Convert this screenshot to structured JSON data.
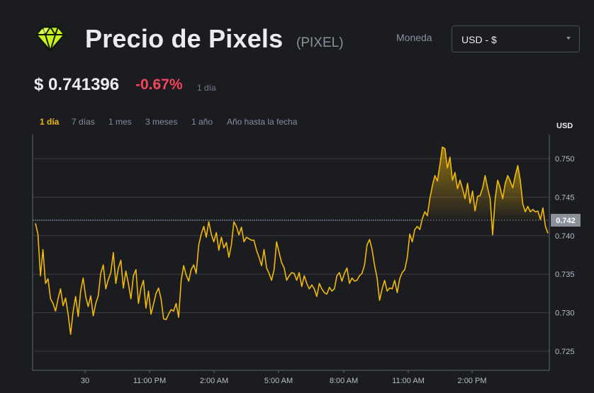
{
  "header": {
    "title": "Precio de Pixels",
    "ticker": "(PIXEL)",
    "currency_label": "Moneda",
    "currency_value": "USD - $",
    "logo_icon": "green-gem-icon"
  },
  "price": {
    "value": "$ 0.741396",
    "change": "-0.67%",
    "period": "1 día",
    "change_color": "#f6465d"
  },
  "tabs": [
    "1 día",
    "7 días",
    "1 mes",
    "3 meses",
    "1 año",
    "Año hasta la fecha"
  ],
  "active_tab": "1 día",
  "chart_data": {
    "type": "line",
    "unit_label": "USD",
    "x_tick_labels": [
      "30",
      "11:00 PM",
      "2:00 AM",
      "5:00 AM",
      "8:00 AM",
      "11:00 AM",
      "2:00 PM"
    ],
    "y_ticks": [
      0.725,
      0.73,
      0.735,
      0.74,
      0.745,
      0.75
    ],
    "y_tick_labels": [
      "0.725",
      "0.730",
      "0.735",
      "0.740",
      "0.745",
      "0.750"
    ],
    "ylim": [
      0.7226,
      0.7529
    ],
    "reference_value": 0.742,
    "reference_label": "0.742",
    "grid": true,
    "line_color": "#f0b90b",
    "values": [
      0.7416,
      0.7402,
      0.7348,
      0.7382,
      0.7338,
      0.7344,
      0.7318,
      0.7312,
      0.7302,
      0.7318,
      0.7331,
      0.7309,
      0.7319,
      0.7298,
      0.7272,
      0.7302,
      0.7321,
      0.7295,
      0.7328,
      0.7345,
      0.7321,
      0.7308,
      0.7322,
      0.7296,
      0.7312,
      0.7322,
      0.7351,
      0.7362,
      0.7331,
      0.7343,
      0.7352,
      0.7378,
      0.7338,
      0.7358,
      0.7368,
      0.7332,
      0.7354,
      0.7338,
      0.7318,
      0.7348,
      0.7356,
      0.7312,
      0.7332,
      0.7342,
      0.7306,
      0.7328,
      0.7298,
      0.7311,
      0.7325,
      0.7332,
      0.7318,
      0.7292,
      0.7291,
      0.7298,
      0.7304,
      0.7302,
      0.7312,
      0.7294,
      0.7342,
      0.7361,
      0.7349,
      0.7341,
      0.7356,
      0.7362,
      0.7351,
      0.7388,
      0.7402,
      0.7412,
      0.7398,
      0.7418,
      0.7402,
      0.7392,
      0.7404,
      0.7381,
      0.7398,
      0.7384,
      0.7391,
      0.7372,
      0.7388,
      0.7418,
      0.7412,
      0.7401,
      0.7411,
      0.7392,
      0.7398,
      0.7396,
      0.7394,
      0.7394,
      0.7381,
      0.7372,
      0.7361,
      0.7382,
      0.7358,
      0.7351,
      0.7342,
      0.7356,
      0.7392,
      0.7378,
      0.7365,
      0.7358,
      0.7342,
      0.7348,
      0.7352,
      0.7351,
      0.7342,
      0.7352,
      0.7334,
      0.7348,
      0.7338,
      0.7331,
      0.7336,
      0.7331,
      0.7321,
      0.7338,
      0.7331,
      0.7326,
      0.7324,
      0.7333,
      0.7328,
      0.7331,
      0.7348,
      0.7352,
      0.7341,
      0.7351,
      0.7358,
      0.7338,
      0.7345,
      0.7341,
      0.7342,
      0.7348,
      0.7351,
      0.7362,
      0.7388,
      0.7395,
      0.7382,
      0.7361,
      0.7345,
      0.7316,
      0.7331,
      0.7342,
      0.7328,
      0.7332,
      0.7331,
      0.7342,
      0.7326,
      0.7344,
      0.7352,
      0.7356,
      0.7371,
      0.7402,
      0.7392,
      0.7408,
      0.7412,
      0.7408,
      0.7422,
      0.7431,
      0.7426,
      0.7448,
      0.7465,
      0.7478,
      0.7471,
      0.7492,
      0.7515,
      0.7513,
      0.7488,
      0.7502,
      0.7472,
      0.7482,
      0.7461,
      0.7472,
      0.7461,
      0.7448,
      0.7468,
      0.7442,
      0.7458,
      0.7432,
      0.7451,
      0.7452,
      0.7462,
      0.7478,
      0.7462,
      0.7448,
      0.7401,
      0.7448,
      0.7472,
      0.7462,
      0.7448,
      0.7468,
      0.7478,
      0.7471,
      0.7462,
      0.7478,
      0.7491,
      0.7472,
      0.7441,
      0.7431,
      0.7438,
      0.7431,
      0.7434,
      0.7431,
      0.7432,
      0.7421,
      0.7436,
      0.7412,
      0.7403
    ]
  }
}
